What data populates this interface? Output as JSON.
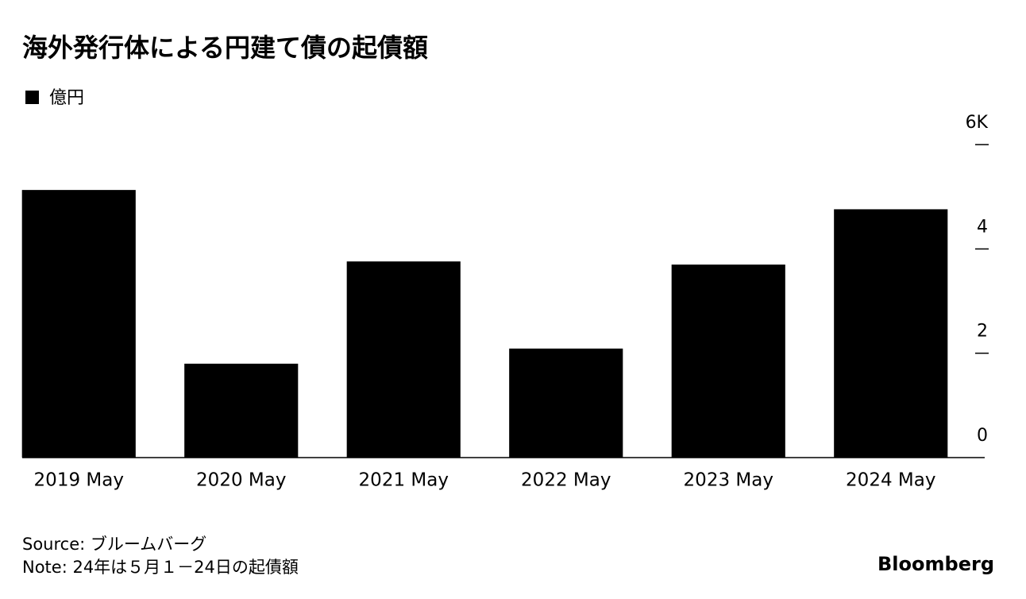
{
  "chart_data": {
    "type": "bar",
    "title": "海外発行体による円建て債の起債額",
    "categories": [
      "2019 May",
      "2020 May",
      "2021 May",
      "2022 May",
      "2023 May",
      "2024 May"
    ],
    "series": [
      {
        "name": "億円",
        "color": "#000000",
        "values": [
          5.13,
          1.8,
          3.76,
          2.09,
          3.7,
          4.76
        ]
      }
    ],
    "ylim": [
      0,
      6
    ],
    "yticks": [
      0,
      2,
      4,
      {
        "value": 6,
        "label": "6K"
      }
    ],
    "source": "Source: ブルームバーグ",
    "note": "Note: 24年は５月１－24日の起債額",
    "brand": "Bloomberg"
  }
}
